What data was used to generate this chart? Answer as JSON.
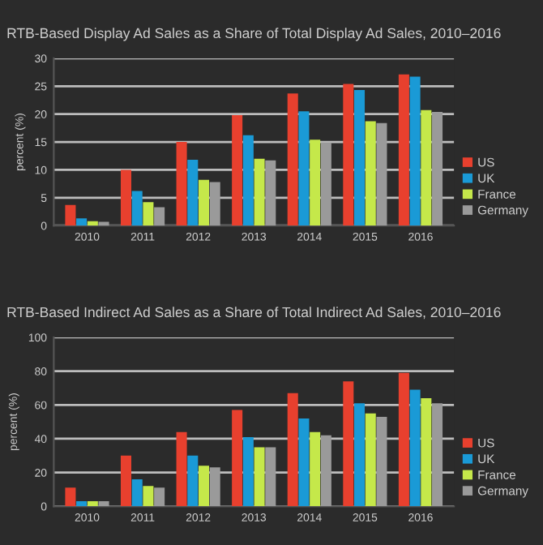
{
  "chart_data": [
    {
      "type": "bar",
      "title": "RTB-Based Display Ad Sales as a Share of Total Display Ad Sales, 2010–2016",
      "ylabel": "percent (%)",
      "categories": [
        "2010",
        "2011",
        "2012",
        "2013",
        "2014",
        "2015",
        "2016"
      ],
      "series": [
        {
          "name": "US",
          "color": "#e8402e",
          "values": [
            3.7,
            10.0,
            15.0,
            19.8,
            23.7,
            25.4,
            27.1
          ]
        },
        {
          "name": "UK",
          "color": "#1a9ad6",
          "values": [
            1.3,
            6.2,
            11.8,
            16.2,
            20.5,
            24.3,
            26.7
          ]
        },
        {
          "name": "France",
          "color": "#c5e84a",
          "values": [
            0.8,
            4.2,
            8.2,
            12.0,
            15.4,
            18.7,
            20.7
          ]
        },
        {
          "name": "Germany",
          "color": "#9a9a9a",
          "values": [
            0.7,
            3.3,
            7.8,
            11.7,
            14.9,
            18.4,
            20.4
          ]
        }
      ],
      "ylim": [
        0,
        30
      ],
      "yticks": [
        0,
        5,
        10,
        15,
        20,
        25,
        30
      ],
      "grid": "y",
      "legend": "right"
    },
    {
      "type": "bar",
      "title": "RTB-Based Indirect Ad Sales as a Share of Total Indirect Ad Sales, 2010–2016",
      "ylabel": "percent (%)",
      "categories": [
        "2010",
        "2011",
        "2012",
        "2013",
        "2014",
        "2015",
        "2016"
      ],
      "series": [
        {
          "name": "US",
          "color": "#e8402e",
          "values": [
            11,
            30,
            44,
            57,
            67,
            74,
            79
          ]
        },
        {
          "name": "UK",
          "color": "#1a9ad6",
          "values": [
            3,
            16,
            30,
            41,
            52,
            61,
            69
          ]
        },
        {
          "name": "France",
          "color": "#c5e84a",
          "values": [
            3,
            12,
            24,
            35,
            44,
            55,
            64
          ]
        },
        {
          "name": "Germany",
          "color": "#9a9a9a",
          "values": [
            3,
            11,
            23,
            35,
            42,
            53,
            61
          ]
        }
      ],
      "ylim": [
        0,
        100
      ],
      "yticks": [
        0,
        20,
        40,
        60,
        80,
        100
      ],
      "grid": "y",
      "legend": "right"
    }
  ]
}
